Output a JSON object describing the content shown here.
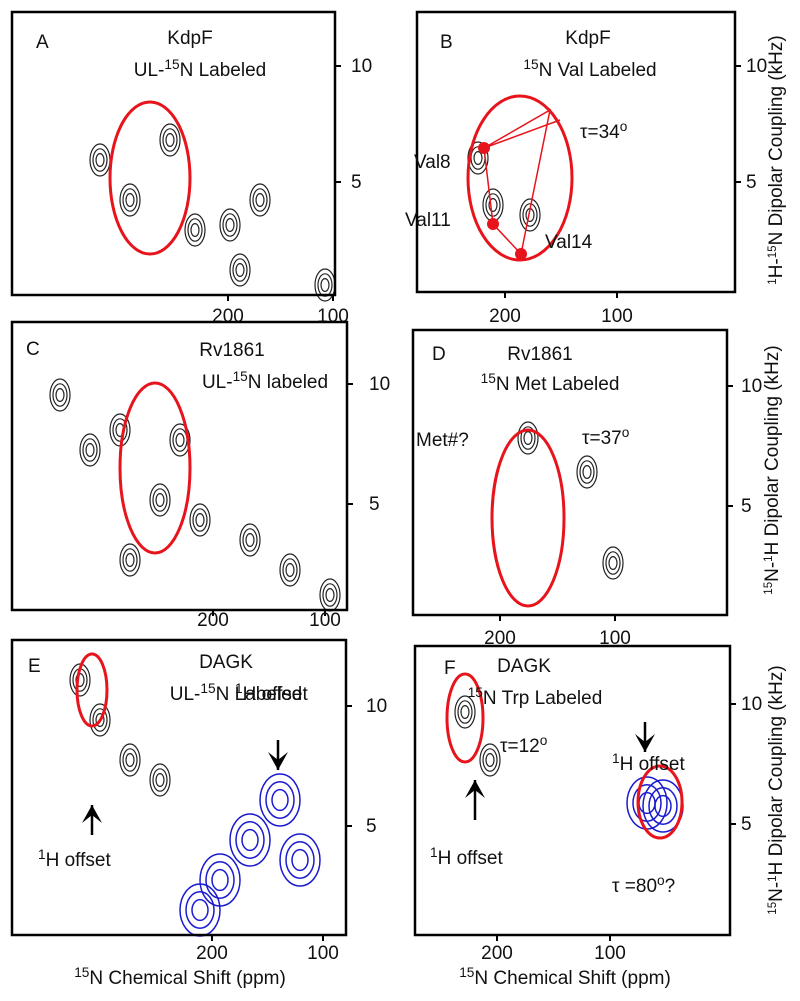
{
  "panels": [
    {
      "letter": "A",
      "title": [
        [
          {
            "text": "KdpF"
          }
        ],
        [
          {
            "text": "UL-"
          },
          {
            "sup": "15"
          },
          {
            "text": "N Labeled"
          }
        ]
      ],
      "xticks": [
        "200",
        "100"
      ],
      "yticks": [
        "10",
        "5"
      ],
      "annotations": []
    },
    {
      "letter": "B",
      "title": [
        [
          {
            "text": "KdpF"
          }
        ],
        [
          {
            "sup": "15"
          },
          {
            "text": "N Val Labeled"
          }
        ]
      ],
      "xticks": [
        "200",
        "100"
      ],
      "yticks": [
        "10",
        "5"
      ],
      "annotations": [
        [
          {
            "text": "τ=34"
          },
          {
            "sup": "o"
          }
        ],
        [
          {
            "text": "Val8"
          }
        ],
        [
          {
            "text": "Val11"
          }
        ],
        [
          {
            "text": "Val14"
          }
        ]
      ],
      "ylabel": [
        {
          "sup": "1"
        },
        {
          "text": "H-"
        },
        {
          "sup": "15"
        },
        {
          "text": "N Dipolar Coupling (kHz)"
        }
      ]
    },
    {
      "letter": "C",
      "title": [
        [
          {
            "text": "Rv1861"
          }
        ],
        [
          {
            "text": "UL-"
          },
          {
            "sup": "15"
          },
          {
            "text": "N labeled"
          }
        ]
      ],
      "xticks": [
        "200",
        "100"
      ],
      "yticks": [
        "10",
        "5"
      ],
      "annotations": []
    },
    {
      "letter": "D",
      "title": [
        [
          {
            "text": "Rv1861"
          }
        ],
        [
          {
            "sup": "15"
          },
          {
            "text": "N Met Labeled"
          }
        ]
      ],
      "xticks": [
        "200",
        "100"
      ],
      "yticks": [
        "10",
        "5"
      ],
      "annotations": [
        [
          {
            "text": "Met#?"
          }
        ],
        [
          {
            "text": "τ=37"
          },
          {
            "sup": "o"
          }
        ]
      ],
      "ylabel": [
        {
          "sup": "15"
        },
        {
          "text": "N-"
        },
        {
          "sup": "1"
        },
        {
          "text": "H Dipolar Coupling (kHz)"
        }
      ]
    },
    {
      "letter": "E",
      "title": [
        [
          {
            "text": "DAGK"
          }
        ],
        [
          {
            "text": "UL-"
          },
          {
            "sup": "15"
          },
          {
            "text": "N Labeled"
          }
        ]
      ],
      "xticks": [
        "200",
        "100"
      ],
      "yticks": [
        "10",
        "5"
      ],
      "annotations": [
        [
          {
            "sup": "1"
          },
          {
            "text": "H offset"
          }
        ],
        [
          {
            "sup": "1"
          },
          {
            "text": "H offset"
          }
        ]
      ],
      "xlabel": [
        {
          "sup": "15"
        },
        {
          "text": "N Chemical Shift (ppm)"
        }
      ]
    },
    {
      "letter": "F",
      "title": [
        [
          {
            "text": "DAGK"
          }
        ],
        [
          {
            "sup": "15"
          },
          {
            "text": "N Trp Labeled"
          }
        ]
      ],
      "xticks": [
        "200",
        "100"
      ],
      "yticks": [
        "10",
        "5"
      ],
      "annotations": [
        [
          {
            "text": "τ=12"
          },
          {
            "sup": "o"
          }
        ],
        [
          {
            "sup": "1"
          },
          {
            "text": "H offset"
          }
        ],
        [
          {
            "sup": "1"
          },
          {
            "text": "H offset"
          }
        ],
        [
          {
            "text": "τ =80"
          },
          {
            "sup": "o"
          },
          {
            "text": "?"
          }
        ]
      ],
      "xlabel": [
        {
          "sup": "15"
        },
        {
          "text": "N Chemical Shift (ppm)"
        }
      ],
      "ylabel": [
        {
          "sup": "15"
        },
        {
          "text": "N-"
        },
        {
          "sup": "1"
        },
        {
          "text": "H Dipolar Coupling (kHz)"
        }
      ]
    }
  ]
}
